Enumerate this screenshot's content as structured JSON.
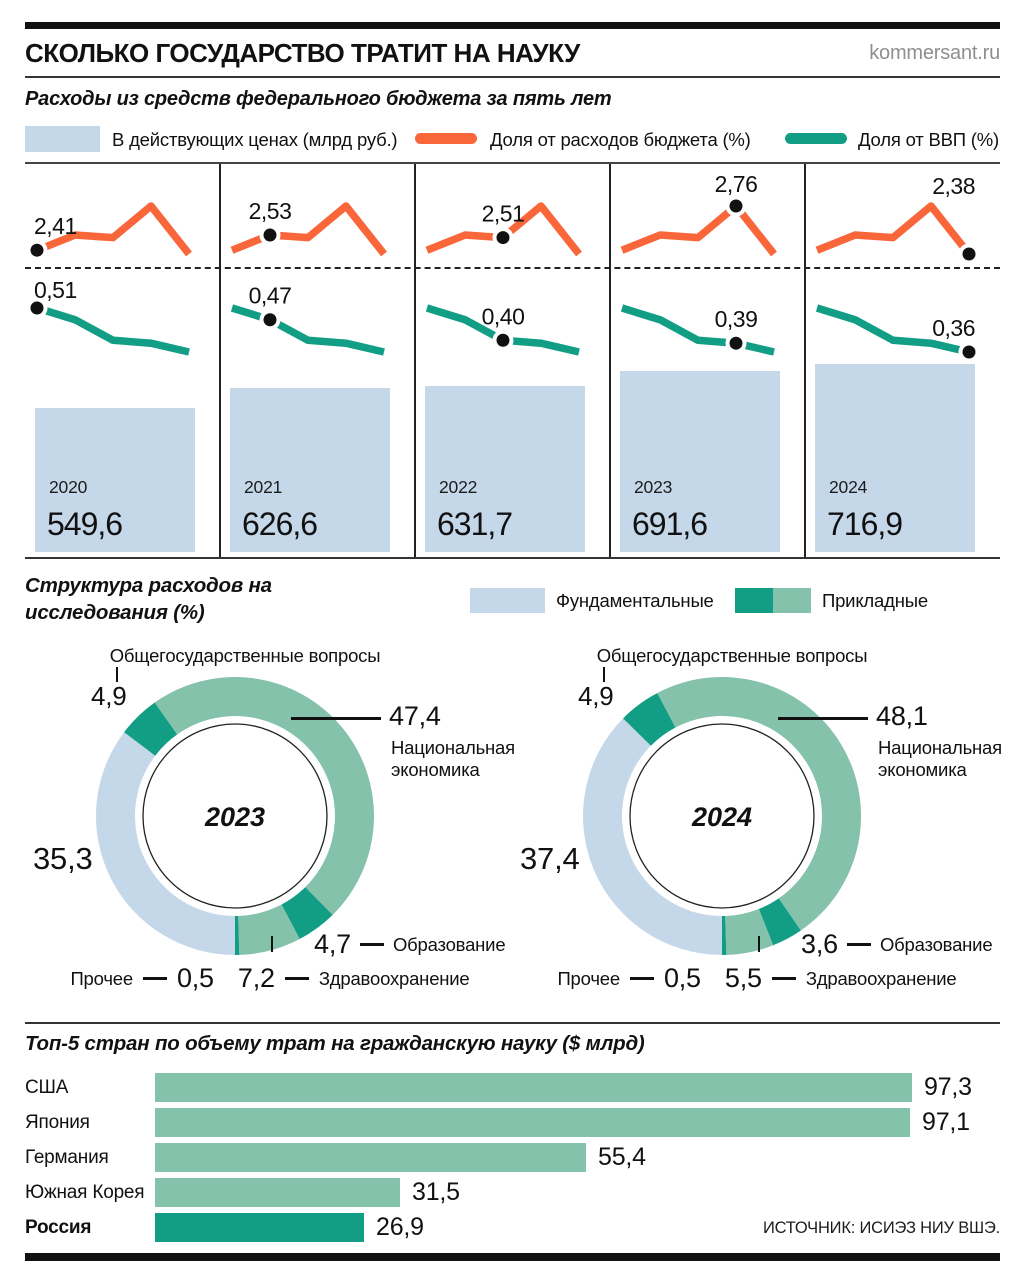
{
  "page": {
    "title": "СКОЛЬКО ГОСУДАРСТВО ТРАТИТ НА НАУКУ",
    "site": "kommersant.ru",
    "source": "ИСТОЧНИК: ИСИЭЗ НИУ ВШЭ."
  },
  "colors": {
    "bar_blue": "#c5d8ea",
    "orange": "#f9663a",
    "teal_dark": "#129d85",
    "teal_mid": "#84c2ab"
  },
  "section2_legend": {
    "fundamental": "Фундаментальные",
    "applied": "Прикладные"
  },
  "chart_data": [
    {
      "id": "federal-budget-5-years",
      "type": "bar+line",
      "title": "Расходы из средств федерального бюджета за пять лет",
      "categories": [
        "2020",
        "2021",
        "2022",
        "2023",
        "2024"
      ],
      "series": [
        {
          "name": "В действующих ценах (млрд руб.)",
          "type": "bar",
          "color": "#c5d8ea",
          "values": [
            549.6,
            626.6,
            631.7,
            691.6,
            716.9
          ],
          "labels": [
            "549,6",
            "626,6",
            "631,7",
            "691,6",
            "716,9"
          ]
        },
        {
          "name": "Доля от расходов бюджета (%)",
          "type": "line",
          "color": "#f9663a",
          "values": [
            2.41,
            2.53,
            2.51,
            2.76,
            2.38
          ],
          "labels": [
            "2,41",
            "2,53",
            "2,51",
            "2,76",
            "2,38"
          ]
        },
        {
          "name": "Доля от ВВП (%)",
          "type": "line",
          "color": "#129d85",
          "values": [
            0.51,
            0.47,
            0.4,
            0.39,
            0.36
          ],
          "labels": [
            "0,51",
            "0,47",
            "0,40",
            "0,39",
            "0,36"
          ]
        }
      ]
    },
    {
      "id": "research-structure-2023",
      "type": "pie",
      "title": "Структура расходов на исследования (%)",
      "center_label": "2023",
      "slices": [
        {
          "label": "Фундаментальные",
          "value": 35.3,
          "display": "35,3",
          "color": "#c5d8ea"
        },
        {
          "label": "Общегосударственные вопросы",
          "value": 4.9,
          "display": "4,9",
          "color": "#129d85"
        },
        {
          "label": "Национальная экономика",
          "value": 47.4,
          "display": "47,4",
          "color": "#84c2ab"
        },
        {
          "label": "Образование",
          "value": 4.7,
          "display": "4,7",
          "color": "#129d85"
        },
        {
          "label": "Здравоохранение",
          "value": 7.2,
          "display": "7,2",
          "color": "#84c2ab"
        },
        {
          "label": "Прочее",
          "value": 0.5,
          "display": "0,5",
          "color": "#129d85"
        }
      ]
    },
    {
      "id": "research-structure-2024",
      "type": "pie",
      "title": "Структура расходов на исследования (%)",
      "center_label": "2024",
      "slices": [
        {
          "label": "Фундаментальные",
          "value": 37.4,
          "display": "37,4",
          "color": "#c5d8ea"
        },
        {
          "label": "Общегосударственные вопросы",
          "value": 4.9,
          "display": "4,9",
          "color": "#129d85"
        },
        {
          "label": "Национальная экономика",
          "value": 48.1,
          "display": "48,1",
          "color": "#84c2ab"
        },
        {
          "label": "Образование",
          "value": 3.6,
          "display": "3,6",
          "color": "#129d85"
        },
        {
          "label": "Здравоохранение",
          "value": 5.5,
          "display": "5,5",
          "color": "#84c2ab"
        },
        {
          "label": "Прочее",
          "value": 0.5,
          "display": "0,5",
          "color": "#129d85"
        }
      ]
    },
    {
      "id": "top5-civil-science-spending",
      "type": "bar",
      "title": "Топ-5 стран по объему трат на гражданскую науку ($ млрд)",
      "categories": [
        "США",
        "Япония",
        "Германия",
        "Южная Корея",
        "Россия"
      ],
      "values": [
        97.3,
        97.1,
        55.4,
        31.5,
        26.9
      ],
      "labels": [
        "97,3",
        "97,1",
        "55,4",
        "31,5",
        "26,9"
      ],
      "bar_colors": [
        "#84c2ab",
        "#84c2ab",
        "#84c2ab",
        "#84c2ab",
        "#129d85"
      ],
      "xlim": [
        0,
        100
      ]
    }
  ]
}
